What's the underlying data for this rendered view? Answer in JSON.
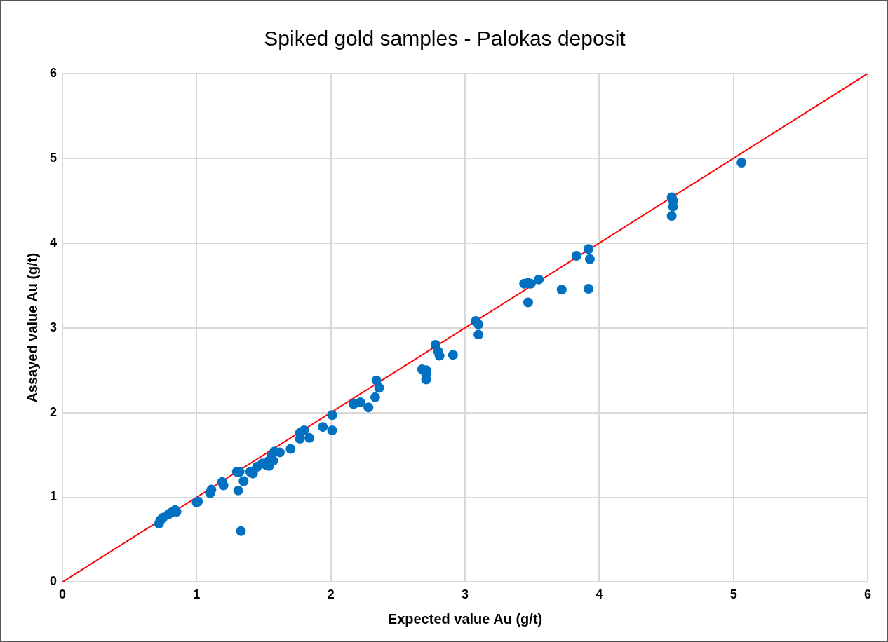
{
  "chart_data": {
    "type": "scatter",
    "title": "Spiked gold samples - Palokas deposit",
    "xlabel": "Expected value Au (g/t)",
    "ylabel": "Assayed value Au (g/t)",
    "xlim": [
      0,
      6
    ],
    "xticks": [
      0,
      1,
      2,
      3,
      4,
      5,
      6
    ],
    "ylim": [
      0,
      6
    ],
    "yticks": [
      0,
      1,
      2,
      3,
      4,
      5,
      6
    ],
    "grid": true,
    "legend": false,
    "marker": "circle",
    "series": [
      {
        "color": "#0070c0",
        "x": [
          0.72,
          0.73,
          0.75,
          0.79,
          0.81,
          0.84,
          0.85,
          1.0,
          1.01,
          1.1,
          1.11,
          1.19,
          1.2,
          1.3,
          1.32,
          1.31,
          1.35,
          1.33,
          1.4,
          1.42,
          1.45,
          1.49,
          1.52,
          1.54,
          1.54,
          1.57,
          1.58,
          1.56,
          1.62,
          1.7,
          1.77,
          1.77,
          1.8,
          1.84,
          1.94,
          2.01,
          2.01,
          2.17,
          2.22,
          2.28,
          2.33,
          2.34,
          2.36,
          2.68,
          2.71,
          2.71,
          2.71,
          2.78,
          2.8,
          2.81,
          2.91,
          3.08,
          3.1,
          3.1,
          3.47,
          3.49,
          3.44,
          3.47,
          3.55,
          3.72,
          3.83,
          3.92,
          3.93,
          3.92,
          4.54,
          4.55,
          4.55,
          4.54,
          5.06
        ],
        "values": [
          0.69,
          0.73,
          0.76,
          0.8,
          0.82,
          0.85,
          0.83,
          0.94,
          0.95,
          1.05,
          1.09,
          1.18,
          1.14,
          1.3,
          1.3,
          1.08,
          1.19,
          0.6,
          1.3,
          1.28,
          1.36,
          1.4,
          1.38,
          1.43,
          1.37,
          1.43,
          1.54,
          1.49,
          1.53,
          1.57,
          1.76,
          1.69,
          1.79,
          1.7,
          1.83,
          1.97,
          1.79,
          2.1,
          2.12,
          2.06,
          2.18,
          2.38,
          2.29,
          2.51,
          2.5,
          2.45,
          2.39,
          2.8,
          2.72,
          2.67,
          2.68,
          3.08,
          3.04,
          2.92,
          3.53,
          3.52,
          3.52,
          3.3,
          3.57,
          3.45,
          3.85,
          3.93,
          3.81,
          3.46,
          4.54,
          4.5,
          4.43,
          4.32,
          4.95
        ]
      },
      {
        "type": "line",
        "color": "#ff0000",
        "x": [
          0,
          6
        ],
        "values": [
          0,
          6
        ],
        "marker": "none"
      }
    ]
  }
}
